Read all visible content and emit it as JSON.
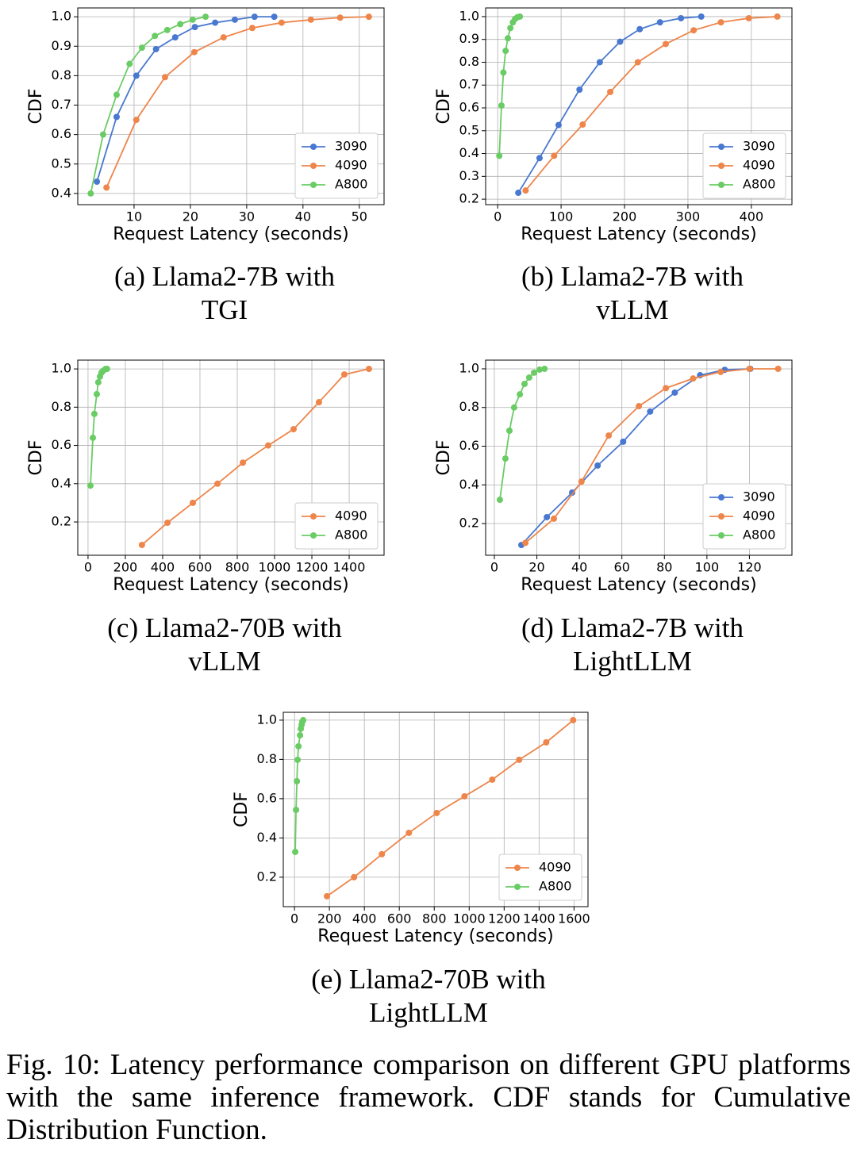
{
  "chart_data": [
    {
      "type": "line",
      "xlabel": "Request Latency (seconds)",
      "ylabel": "CDF",
      "caption": "(a) Llama2-7B with TGI",
      "xlim": [
        0,
        54.4
      ],
      "ylim": [
        0.362,
        1.03
      ],
      "xticks": [
        10,
        20,
        30,
        40,
        50
      ],
      "yticks": [
        0.4,
        0.5,
        0.6,
        0.7,
        0.8,
        0.9,
        {
          "value": 1.0,
          "label": "1.0"
        }
      ],
      "grid": true,
      "legend": "lower right",
      "series": [
        {
          "name": "3090",
          "color": "#4878d0",
          "x": [
            3.4,
            6.9,
            10.4,
            13.9,
            17.3,
            20.8,
            24.4,
            27.9,
            31.4,
            34.9
          ],
          "values": [
            0.44,
            0.66,
            0.8,
            0.89,
            0.93,
            0.965,
            0.98,
            0.99,
            1.0,
            1.0
          ]
        },
        {
          "name": "4090",
          "color": "#ee854a",
          "x": [
            5.1,
            10.4,
            15.5,
            20.7,
            25.9,
            31.0,
            36.2,
            41.4,
            46.6,
            51.7
          ],
          "values": [
            0.42,
            0.65,
            0.795,
            0.88,
            0.93,
            0.962,
            0.98,
            0.99,
            0.997,
            1.0
          ]
        },
        {
          "name": "A800",
          "color": "#6acc64",
          "x": [
            2.3,
            4.5,
            6.9,
            9.2,
            11.4,
            13.7,
            15.9,
            18.2,
            20.4,
            22.7
          ],
          "values": [
            0.4,
            0.6,
            0.735,
            0.84,
            0.895,
            0.935,
            0.955,
            0.975,
            0.99,
            1.0
          ]
        }
      ]
    },
    {
      "type": "line",
      "xlabel": "Request Latency (seconds)",
      "ylabel": "CDF",
      "caption": "(b) Llama2-7B with vLLM",
      "xlim": [
        -19,
        464
      ],
      "ylim": [
        0.176,
        1.038
      ],
      "xticks": [
        0,
        100,
        200,
        300,
        400
      ],
      "yticks": [
        0.2,
        0.3,
        0.4,
        0.5,
        0.6,
        0.7,
        0.8,
        0.9,
        {
          "value": 1.0,
          "label": "1.0"
        }
      ],
      "grid": true,
      "legend": "lower right",
      "series": [
        {
          "name": "3090",
          "color": "#4878d0",
          "x": [
            32.5,
            66,
            96,
            129,
            161,
            193,
            224,
            256,
            289,
            321
          ],
          "values": [
            0.228,
            0.38,
            0.525,
            0.68,
            0.8,
            0.89,
            0.945,
            0.975,
            0.993,
            1.0
          ]
        },
        {
          "name": "4090",
          "color": "#ee854a",
          "x": [
            44,
            89,
            134,
            177.5,
            221,
            265,
            309,
            352,
            396,
            441
          ],
          "values": [
            0.238,
            0.39,
            0.527,
            0.67,
            0.8,
            0.88,
            0.94,
            0.975,
            0.993,
            1.0
          ]
        },
        {
          "name": "A800",
          "color": "#6acc64",
          "x": [
            2.5,
            6,
            9,
            12.5,
            16,
            20,
            24,
            27.5,
            31,
            35
          ],
          "values": [
            0.39,
            0.61,
            0.755,
            0.85,
            0.905,
            0.95,
            0.975,
            0.99,
            0.997,
            1.0
          ]
        }
      ]
    },
    {
      "type": "line",
      "xlabel": "Request Latency (seconds)",
      "ylabel": "CDF",
      "caption": "(c) Llama2-70B with vLLM",
      "xlim": [
        -55,
        1587
      ],
      "ylim": [
        0.026,
        1.046
      ],
      "xticks": [
        0,
        200,
        400,
        600,
        800,
        1000,
        1200,
        1400
      ],
      "yticks": [
        0.2,
        0.4,
        0.6,
        0.8,
        {
          "value": 1.0,
          "label": "1.0"
        }
      ],
      "grid": true,
      "legend": "lower right",
      "series": [
        {
          "name": "4090",
          "color": "#ee854a",
          "x": [
            289,
            426,
            562,
            694,
            830,
            966,
            1102,
            1238,
            1374,
            1506
          ],
          "values": [
            0.08,
            0.196,
            0.3,
            0.4,
            0.51,
            0.6,
            0.685,
            0.826,
            0.971,
            1.0
          ]
        },
        {
          "name": "A800",
          "color": "#6acc64",
          "x": [
            13,
            26,
            34,
            47,
            55,
            64,
            72,
            81,
            94,
            102
          ],
          "values": [
            0.39,
            0.64,
            0.765,
            0.868,
            0.93,
            0.96,
            0.98,
            0.99,
            1.0,
            1.0
          ]
        }
      ]
    },
    {
      "type": "line",
      "xlabel": "Request Latency (seconds)",
      "ylabel": "CDF",
      "caption": "(d) Llama2-7B with LightLLM",
      "xlim": [
        -4.1,
        140
      ],
      "ylim": [
        0.036,
        1.045
      ],
      "xticks": [
        0,
        20,
        40,
        60,
        80,
        100,
        120
      ],
      "yticks": [
        0.2,
        0.4,
        0.6,
        0.8,
        {
          "value": 1.0,
          "label": "1.0"
        }
      ],
      "grid": true,
      "legend": "lower right",
      "series": [
        {
          "name": "3090",
          "color": "#4878d0",
          "x": [
            12.7,
            24.7,
            36.6,
            48.6,
            60.6,
            73.3,
            84.9,
            96.8,
            108.4,
            120.4
          ],
          "values": [
            0.089,
            0.233,
            0.36,
            0.5,
            0.623,
            0.779,
            0.877,
            0.967,
            0.995,
            1.0
          ]
        },
        {
          "name": "4090",
          "color": "#ee854a",
          "x": [
            14.6,
            28,
            41,
            53.8,
            68,
            80.7,
            93.5,
            106.5,
            120,
            133.5
          ],
          "values": [
            0.1,
            0.225,
            0.417,
            0.655,
            0.807,
            0.9,
            0.95,
            0.984,
            1.0,
            1.0
          ]
        },
        {
          "name": "A800",
          "color": "#6acc64",
          "x": [
            2.6,
            5.2,
            7.1,
            9.3,
            12,
            14.2,
            16.4,
            18.7,
            21.3,
            23.6
          ],
          "values": [
            0.323,
            0.536,
            0.68,
            0.8,
            0.868,
            0.922,
            0.955,
            0.98,
            0.996,
            1.0
          ]
        }
      ]
    },
    {
      "type": "line",
      "xlabel": "Request Latency (seconds)",
      "ylabel": "CDF",
      "caption": "(e) Llama2-70B with LightLLM",
      "xlim": [
        -64,
        1680
      ],
      "ylim": [
        0.05,
        1.04
      ],
      "xticks": [
        0,
        200,
        400,
        600,
        800,
        1000,
        1200,
        1400,
        1600
      ],
      "yticks": [
        0.2,
        0.4,
        0.6,
        0.8,
        {
          "value": 1.0,
          "label": "1.0"
        }
      ],
      "grid": true,
      "legend": "lower right",
      "series": [
        {
          "name": "4090",
          "color": "#ee854a",
          "x": [
            186,
            341,
            500,
            655,
            814,
            973,
            1132,
            1286,
            1441,
            1595
          ],
          "values": [
            0.103,
            0.2,
            0.317,
            0.426,
            0.527,
            0.612,
            0.697,
            0.798,
            0.887,
            1.0
          ]
        },
        {
          "name": "A800",
          "color": "#6acc64",
          "x": [
            4.5,
            9,
            14,
            18,
            23,
            32,
            36,
            41,
            45,
            50
          ],
          "values": [
            0.329,
            0.543,
            0.689,
            0.798,
            0.867,
            0.923,
            0.956,
            0.976,
            0.992,
            1.0
          ]
        }
      ]
    }
  ],
  "figure_caption": "Fig. 10: Latency performance comparison on different GPU platforms with the same inference framework. CDF stands for Cumulative Distribution Function."
}
